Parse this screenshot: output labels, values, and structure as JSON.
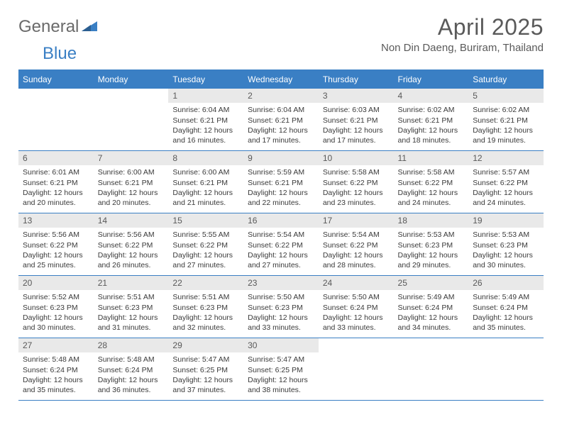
{
  "brand": {
    "word1": "General",
    "word2": "Blue"
  },
  "title": "April 2025",
  "location": "Non Din Daeng, Buriram, Thailand",
  "colors": {
    "accent": "#3a7fc4",
    "header_bg": "#3a7fc4",
    "header_text": "#ffffff",
    "daynum_bg": "#e9e9e9",
    "text": "#3a3a3a",
    "background": "#ffffff"
  },
  "weekdays": [
    "Sunday",
    "Monday",
    "Tuesday",
    "Wednesday",
    "Thursday",
    "Friday",
    "Saturday"
  ],
  "weeks": [
    [
      null,
      null,
      {
        "n": "1",
        "sr": "6:04 AM",
        "ss": "6:21 PM",
        "dl": "12 hours and 16 minutes."
      },
      {
        "n": "2",
        "sr": "6:04 AM",
        "ss": "6:21 PM",
        "dl": "12 hours and 17 minutes."
      },
      {
        "n": "3",
        "sr": "6:03 AM",
        "ss": "6:21 PM",
        "dl": "12 hours and 17 minutes."
      },
      {
        "n": "4",
        "sr": "6:02 AM",
        "ss": "6:21 PM",
        "dl": "12 hours and 18 minutes."
      },
      {
        "n": "5",
        "sr": "6:02 AM",
        "ss": "6:21 PM",
        "dl": "12 hours and 19 minutes."
      }
    ],
    [
      {
        "n": "6",
        "sr": "6:01 AM",
        "ss": "6:21 PM",
        "dl": "12 hours and 20 minutes."
      },
      {
        "n": "7",
        "sr": "6:00 AM",
        "ss": "6:21 PM",
        "dl": "12 hours and 20 minutes."
      },
      {
        "n": "8",
        "sr": "6:00 AM",
        "ss": "6:21 PM",
        "dl": "12 hours and 21 minutes."
      },
      {
        "n": "9",
        "sr": "5:59 AM",
        "ss": "6:21 PM",
        "dl": "12 hours and 22 minutes."
      },
      {
        "n": "10",
        "sr": "5:58 AM",
        "ss": "6:22 PM",
        "dl": "12 hours and 23 minutes."
      },
      {
        "n": "11",
        "sr": "5:58 AM",
        "ss": "6:22 PM",
        "dl": "12 hours and 24 minutes."
      },
      {
        "n": "12",
        "sr": "5:57 AM",
        "ss": "6:22 PM",
        "dl": "12 hours and 24 minutes."
      }
    ],
    [
      {
        "n": "13",
        "sr": "5:56 AM",
        "ss": "6:22 PM",
        "dl": "12 hours and 25 minutes."
      },
      {
        "n": "14",
        "sr": "5:56 AM",
        "ss": "6:22 PM",
        "dl": "12 hours and 26 minutes."
      },
      {
        "n": "15",
        "sr": "5:55 AM",
        "ss": "6:22 PM",
        "dl": "12 hours and 27 minutes."
      },
      {
        "n": "16",
        "sr": "5:54 AM",
        "ss": "6:22 PM",
        "dl": "12 hours and 27 minutes."
      },
      {
        "n": "17",
        "sr": "5:54 AM",
        "ss": "6:22 PM",
        "dl": "12 hours and 28 minutes."
      },
      {
        "n": "18",
        "sr": "5:53 AM",
        "ss": "6:23 PM",
        "dl": "12 hours and 29 minutes."
      },
      {
        "n": "19",
        "sr": "5:53 AM",
        "ss": "6:23 PM",
        "dl": "12 hours and 30 minutes."
      }
    ],
    [
      {
        "n": "20",
        "sr": "5:52 AM",
        "ss": "6:23 PM",
        "dl": "12 hours and 30 minutes."
      },
      {
        "n": "21",
        "sr": "5:51 AM",
        "ss": "6:23 PM",
        "dl": "12 hours and 31 minutes."
      },
      {
        "n": "22",
        "sr": "5:51 AM",
        "ss": "6:23 PM",
        "dl": "12 hours and 32 minutes."
      },
      {
        "n": "23",
        "sr": "5:50 AM",
        "ss": "6:23 PM",
        "dl": "12 hours and 33 minutes."
      },
      {
        "n": "24",
        "sr": "5:50 AM",
        "ss": "6:24 PM",
        "dl": "12 hours and 33 minutes."
      },
      {
        "n": "25",
        "sr": "5:49 AM",
        "ss": "6:24 PM",
        "dl": "12 hours and 34 minutes."
      },
      {
        "n": "26",
        "sr": "5:49 AM",
        "ss": "6:24 PM",
        "dl": "12 hours and 35 minutes."
      }
    ],
    [
      {
        "n": "27",
        "sr": "5:48 AM",
        "ss": "6:24 PM",
        "dl": "12 hours and 35 minutes."
      },
      {
        "n": "28",
        "sr": "5:48 AM",
        "ss": "6:24 PM",
        "dl": "12 hours and 36 minutes."
      },
      {
        "n": "29",
        "sr": "5:47 AM",
        "ss": "6:25 PM",
        "dl": "12 hours and 37 minutes."
      },
      {
        "n": "30",
        "sr": "5:47 AM",
        "ss": "6:25 PM",
        "dl": "12 hours and 38 minutes."
      },
      null,
      null,
      null
    ]
  ],
  "labels": {
    "sunrise": "Sunrise:",
    "sunset": "Sunset:",
    "daylight": "Daylight:"
  }
}
